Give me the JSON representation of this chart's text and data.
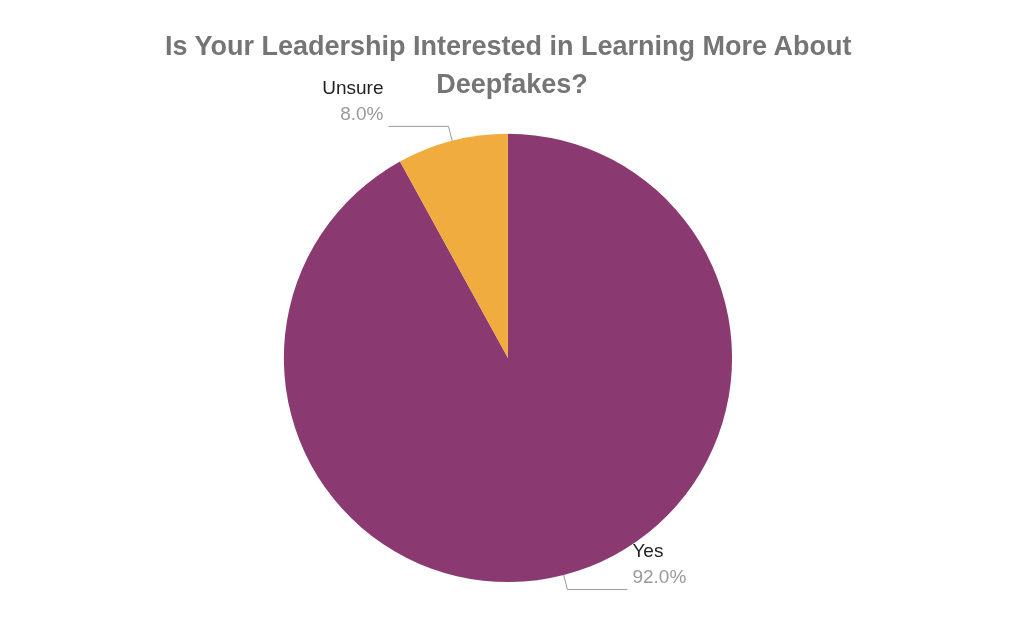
{
  "chart_data": {
    "type": "pie",
    "title": "Is Your Leadership Interested in Learning More About Deepfakes?",
    "categories": [
      "Yes",
      "Unsure"
    ],
    "values": [
      92,
      8
    ],
    "colors": [
      "#8b3a71",
      "#f0ac3e"
    ],
    "value_labels": [
      "92.0%",
      "8.0%"
    ],
    "legend": false
  }
}
